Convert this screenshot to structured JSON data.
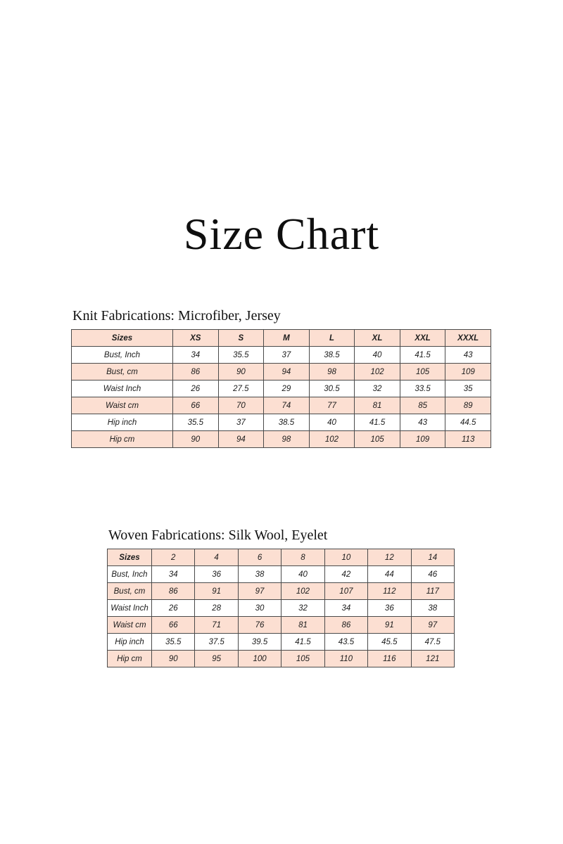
{
  "page": {
    "title": "Size Chart"
  },
  "colors": {
    "row_accent": "#fcdfd2",
    "border": "#4a4a4a",
    "text": "#1c1c1c",
    "background": "#ffffff"
  },
  "tables": [
    {
      "heading": "Knit Fabrications: Microfiber, Jersey",
      "header": [
        "Sizes",
        "XS",
        "S",
        "M",
        "L",
        "XL",
        "XXL",
        "XXXL"
      ],
      "rows": [
        [
          "Bust, Inch",
          "34",
          "35.5",
          "37",
          "38.5",
          "40",
          "41.5",
          "43"
        ],
        [
          "Bust, cm",
          "86",
          "90",
          "94",
          "98",
          "102",
          "105",
          "109"
        ],
        [
          "Waist Inch",
          "26",
          "27.5",
          "29",
          "30.5",
          "32",
          "33.5",
          "35"
        ],
        [
          "Waist cm",
          "66",
          "70",
          "74",
          "77",
          "81",
          "85",
          "89"
        ],
        [
          "Hip inch",
          "35.5",
          "37",
          "38.5",
          "40",
          "41.5",
          "43",
          "44.5"
        ],
        [
          "Hip cm",
          "90",
          "94",
          "98",
          "102",
          "105",
          "109",
          "113"
        ]
      ]
    },
    {
      "heading": "Woven Fabrications: Silk Wool, Eyelet",
      "header": [
        "Sizes",
        "2",
        "4",
        "6",
        "8",
        "10",
        "12",
        "14"
      ],
      "rows": [
        [
          "Bust, Inch",
          "34",
          "36",
          "38",
          "40",
          "42",
          "44",
          "46"
        ],
        [
          "Bust, cm",
          "86",
          "91",
          "97",
          "102",
          "107",
          "112",
          "117"
        ],
        [
          "Waist Inch",
          "26",
          "28",
          "30",
          "32",
          "34",
          "36",
          "38"
        ],
        [
          "Waist cm",
          "66",
          "71",
          "76",
          "81",
          "86",
          "91",
          "97"
        ],
        [
          "Hip inch",
          "35.5",
          "37.5",
          "39.5",
          "41.5",
          "43.5",
          "45.5",
          "47.5"
        ],
        [
          "Hip cm",
          "90",
          "95",
          "100",
          "105",
          "110",
          "116",
          "121"
        ]
      ]
    }
  ]
}
